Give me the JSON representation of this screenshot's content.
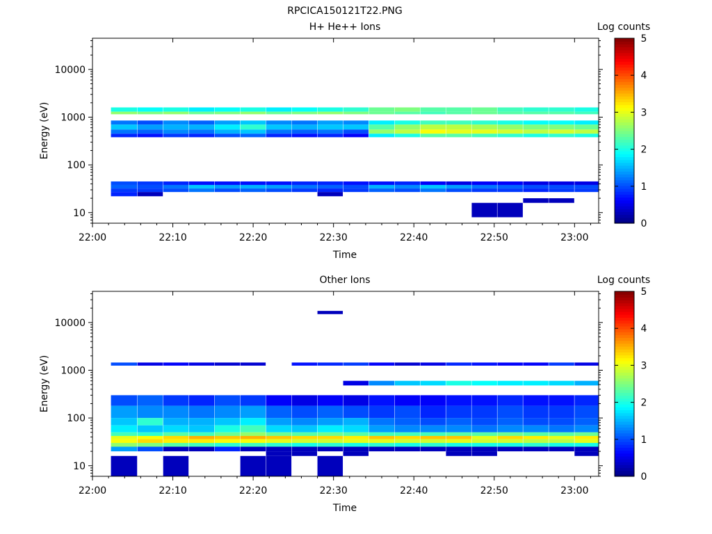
{
  "figure_title": "RPCICA150121T22.PNG",
  "colors": {
    "background": "#ffffff",
    "axes": "#000000",
    "colormap": [
      "#00007f",
      "#0000ff",
      "#007fff",
      "#00ffff",
      "#7fff7f",
      "#ffff00",
      "#ff7f00",
      "#ff0000",
      "#7f0000"
    ]
  },
  "chart_data": [
    {
      "type": "heatmap",
      "title": "H+ He++ Ions",
      "xlabel": "Time",
      "ylabel": "Energy (eV)",
      "x_ticks": [
        "22:00",
        "22:10",
        "22:20",
        "22:30",
        "22:40",
        "22:50",
        "23:00"
      ],
      "y_scale": "log",
      "y_ticks": [
        "10",
        "100",
        "1000",
        "10000"
      ],
      "ylim": [
        6,
        45000
      ],
      "xlim": [
        "22:00",
        "23:03"
      ],
      "colorbar": {
        "label": "Log counts",
        "min": 0,
        "max": 5,
        "ticks": [
          "0",
          "1",
          "2",
          "3",
          "4",
          "5"
        ]
      },
      "time_bins_start_min": [
        2.3,
        5.6,
        8.8,
        12,
        15.2,
        18.4,
        21.6,
        24.8,
        28,
        31.2,
        34.4,
        37.6,
        40.8,
        44,
        47.2,
        50.4,
        53.6,
        56.8,
        60
      ],
      "bands": [
        {
          "e_low": 1300,
          "e_high": 1600,
          "log_counts": [
            2.0,
            1.9,
            2.0,
            1.8,
            1.9,
            2.0,
            1.8,
            1.9,
            2.0,
            2.1,
            2.4,
            2.5,
            2.3,
            2.3,
            2.4,
            2.2,
            2.1,
            2.1,
            2.0
          ]
        },
        {
          "e_low": 1150,
          "e_high": 1300,
          "log_counts": [
            2.6,
            2.5,
            2.6,
            2.4,
            2.5,
            2.6,
            2.4,
            2.5,
            2.6,
            2.5,
            2.4,
            2.3,
            2.2,
            2.3,
            2.4,
            2.3,
            2.3,
            2.3,
            2.2
          ]
        },
        {
          "e_low": 700,
          "e_high": 850,
          "log_counts": [
            1.2,
            1.0,
            1.3,
            1.1,
            1.4,
            1.6,
            1.3,
            1.2,
            1.4,
            1.3,
            1.8,
            2.0,
            2.2,
            2.2,
            2.1,
            2.0,
            1.9,
            1.9,
            1.8
          ]
        },
        {
          "e_low": 550,
          "e_high": 700,
          "log_counts": [
            1.6,
            1.4,
            1.5,
            1.5,
            1.8,
            2.1,
            1.6,
            1.5,
            1.6,
            1.6,
            2.3,
            2.6,
            2.8,
            2.8,
            2.7,
            2.6,
            2.5,
            2.5,
            2.4
          ]
        },
        {
          "e_low": 450,
          "e_high": 550,
          "log_counts": [
            1.2,
            1.1,
            1.3,
            1.2,
            1.5,
            1.6,
            1.2,
            1.1,
            1.2,
            1.0,
            2.6,
            2.8,
            3.1,
            3.0,
            3.0,
            2.9,
            2.8,
            2.9,
            2.8
          ]
        },
        {
          "e_low": 380,
          "e_high": 450,
          "log_counts": [
            0.8,
            0.7,
            0.9,
            0.8,
            1.0,
            1.1,
            0.8,
            0.7,
            0.8,
            0.6,
            1.8,
            2.0,
            2.3,
            2.3,
            2.2,
            2.1,
            2.0,
            2.1,
            2.0
          ]
        },
        {
          "e_low": 38,
          "e_high": 45,
          "log_counts": [
            1.0,
            0.9,
            0.8,
            0.7,
            0.7,
            0.7,
            0.7,
            0.8,
            0.8,
            0.7,
            0.7,
            0.8,
            0.6,
            0.5,
            0.6,
            0.6,
            0.5,
            0.5,
            0.5
          ]
        },
        {
          "e_low": 32,
          "e_high": 38,
          "log_counts": [
            1.1,
            1.0,
            1.2,
            1.6,
            1.4,
            1.5,
            1.4,
            1.2,
            1.1,
            1.0,
            1.5,
            1.3,
            1.6,
            1.4,
            1.2,
            1.1,
            1.0,
            1.0,
            1.0
          ]
        },
        {
          "e_low": 27,
          "e_high": 32,
          "log_counts": [
            0.9,
            0.9,
            1.0,
            1.2,
            1.0,
            1.1,
            1.0,
            0.9,
            0.8,
            0.9,
            1.1,
            1.0,
            1.2,
            1.0,
            0.9,
            0.9,
            0.8,
            0.9,
            0.9
          ]
        },
        {
          "e_low": 22,
          "e_high": 27,
          "log_counts": [
            0.8,
            0.3,
            null,
            null,
            null,
            null,
            null,
            null,
            0.3,
            null,
            null,
            null,
            null,
            null,
            null,
            null,
            null,
            null,
            null
          ]
        },
        {
          "e_low": 8,
          "e_high": 16,
          "log_counts": [
            null,
            null,
            null,
            null,
            null,
            null,
            null,
            null,
            null,
            null,
            null,
            null,
            null,
            null,
            0.3,
            0.3,
            null,
            null,
            null
          ]
        },
        {
          "e_low": 16,
          "e_high": 20,
          "log_counts": [
            null,
            null,
            null,
            null,
            null,
            null,
            null,
            null,
            null,
            null,
            null,
            null,
            null,
            null,
            null,
            null,
            0.3,
            0.3,
            null
          ]
        }
      ]
    },
    {
      "type": "heatmap",
      "title": "Other Ions",
      "xlabel": "Time",
      "ylabel": "Energy (eV)",
      "x_ticks": [
        "22:00",
        "22:10",
        "22:20",
        "22:30",
        "22:40",
        "22:50",
        "23:00"
      ],
      "y_scale": "log",
      "y_ticks": [
        "10",
        "100",
        "1000",
        "10000"
      ],
      "ylim": [
        6,
        45000
      ],
      "xlim": [
        "22:00",
        "23:03"
      ],
      "colorbar": {
        "label": "Log counts",
        "min": 0,
        "max": 5,
        "ticks": [
          "0",
          "1",
          "2",
          "3",
          "4",
          "5"
        ]
      },
      "time_bins_start_min": [
        2.3,
        5.6,
        8.8,
        12,
        15.2,
        18.4,
        21.6,
        24.8,
        28,
        31.2,
        34.4,
        37.6,
        40.8,
        44,
        47.2,
        50.4,
        53.6,
        56.8,
        60
      ],
      "bands": [
        {
          "e_low": 1250,
          "e_high": 1450,
          "log_counts": [
            1.0,
            0.5,
            0.6,
            0.5,
            0.4,
            0.4,
            null,
            0.7,
            0.8,
            0.9,
            0.6,
            0.4,
            0.5,
            0.8,
            0.7,
            0.6,
            0.6,
            0.9,
            0.5
          ]
        },
        {
          "e_low": 480,
          "e_high": 600,
          "log_counts": [
            null,
            null,
            null,
            null,
            null,
            null,
            null,
            null,
            null,
            0.5,
            1.3,
            1.6,
            1.7,
            2.0,
            1.9,
            1.8,
            1.8,
            1.7,
            1.5
          ]
        },
        {
          "e_low": 180,
          "e_high": 300,
          "log_counts": [
            1.0,
            1.1,
            0.9,
            0.8,
            1.0,
            0.9,
            0.6,
            0.5,
            0.6,
            0.5,
            0.7,
            0.6,
            0.6,
            0.7,
            0.7,
            0.8,
            0.7,
            0.7,
            0.8
          ]
        },
        {
          "e_low": 100,
          "e_high": 180,
          "log_counts": [
            1.4,
            1.3,
            1.3,
            1.2,
            1.3,
            1.4,
            1.1,
            1.0,
            1.1,
            1.0,
            0.9,
            1.0,
            0.8,
            0.9,
            0.9,
            1.0,
            0.9,
            0.9,
            1.0
          ]
        },
        {
          "e_low": 70,
          "e_high": 100,
          "log_counts": [
            1.6,
            2.1,
            1.5,
            1.5,
            1.6,
            1.8,
            1.4,
            1.3,
            1.4,
            1.5,
            1.2,
            1.1,
            1.0,
            1.1,
            1.0,
            1.1,
            1.0,
            1.0,
            1.1
          ]
        },
        {
          "e_low": 50,
          "e_high": 70,
          "log_counts": [
            1.8,
            1.6,
            1.7,
            1.6,
            2.0,
            2.2,
            1.7,
            1.6,
            1.8,
            1.7,
            1.4,
            1.3,
            1.3,
            1.3,
            1.2,
            1.3,
            1.3,
            1.2,
            1.3
          ]
        },
        {
          "e_low": 42,
          "e_high": 50,
          "log_counts": [
            2.2,
            2.1,
            2.3,
            2.2,
            2.4,
            2.6,
            2.4,
            2.3,
            2.4,
            2.3,
            2.2,
            2.2,
            2.2,
            2.3,
            2.3,
            2.4,
            2.3,
            2.3,
            2.4
          ]
        },
        {
          "e_low": 36,
          "e_high": 42,
          "log_counts": [
            3.0,
            3.1,
            3.3,
            3.5,
            3.4,
            3.5,
            3.4,
            3.3,
            3.3,
            3.2,
            3.4,
            3.3,
            3.4,
            3.4,
            3.0,
            3.3,
            3.2,
            3.0,
            3.2
          ]
        },
        {
          "e_low": 30,
          "e_high": 36,
          "log_counts": [
            3.1,
            3.3,
            3.2,
            3.2,
            3.1,
            3.1,
            3.0,
            2.9,
            2.9,
            3.0,
            3.0,
            2.9,
            2.9,
            3.0,
            2.9,
            2.9,
            2.8,
            2.8,
            3.0
          ]
        },
        {
          "e_low": 25,
          "e_high": 30,
          "log_counts": [
            2.6,
            2.5,
            2.3,
            2.2,
            2.1,
            2.2,
            2.1,
            2.0,
            2.1,
            2.0,
            2.1,
            2.0,
            2.1,
            2.0,
            2.0,
            2.0,
            2.1,
            2.0,
            2.0
          ]
        },
        {
          "e_low": 20,
          "e_high": 25,
          "log_counts": [
            1.4,
            1.0,
            0.3,
            0.3,
            0.8,
            0.3,
            0.3,
            0.3,
            0.3,
            0.3,
            0.3,
            0.3,
            0.3,
            0.3,
            0.3,
            0.3,
            0.3,
            0.3,
            0.3
          ]
        },
        {
          "e_low": 16,
          "e_high": 20,
          "log_counts": [
            null,
            null,
            null,
            null,
            null,
            null,
            0.3,
            0.3,
            null,
            0.3,
            null,
            null,
            null,
            0.3,
            0.3,
            null,
            null,
            null,
            0.3
          ]
        },
        {
          "e_low": 6,
          "e_high": 16,
          "log_counts": [
            0.3,
            null,
            0.3,
            null,
            null,
            0.3,
            0.3,
            null,
            0.3,
            null,
            null,
            null,
            null,
            null,
            null,
            null,
            null,
            null,
            null
          ]
        },
        {
          "e_low": 15000,
          "e_high": 17500,
          "log_counts": [
            null,
            null,
            null,
            null,
            null,
            null,
            null,
            null,
            0.3,
            null,
            null,
            null,
            null,
            null,
            null,
            null,
            null,
            null,
            null
          ]
        }
      ]
    }
  ]
}
